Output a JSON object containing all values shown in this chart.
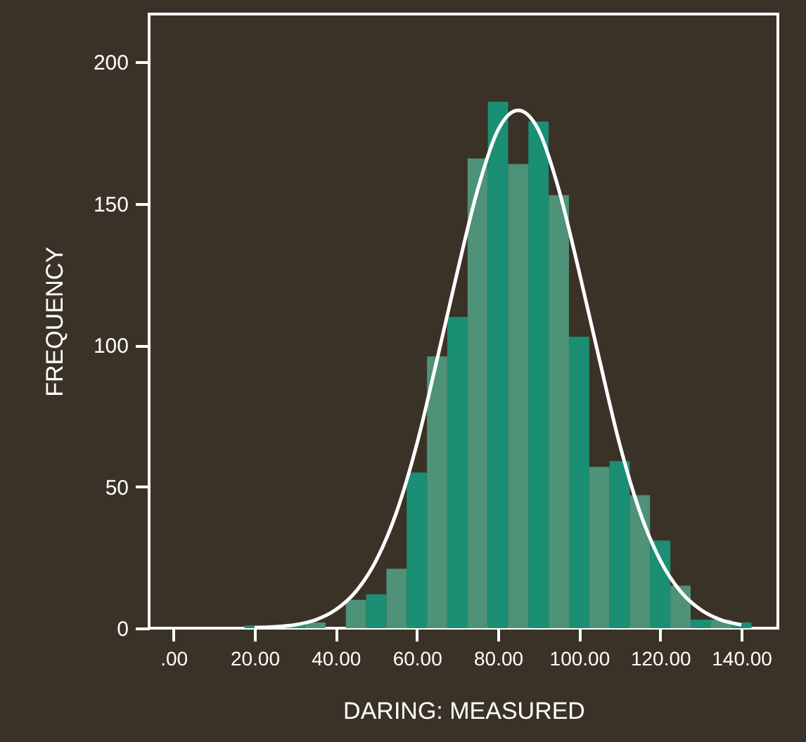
{
  "chart_data": {
    "type": "histogram",
    "xlabel": "DARING: MEASURED",
    "ylabel": "FREQUENCY",
    "bins": [
      17.5,
      22.5,
      27.5,
      32.5,
      37.5,
      42.5,
      47.5,
      52.5,
      57.5,
      62.5,
      67.5,
      72.5,
      77.5,
      82.5,
      87.5,
      92.5,
      97.5,
      102.5,
      107.5,
      112.5,
      117.5,
      122.5,
      127.5,
      132.5,
      137.5,
      142.5
    ],
    "values": [
      1,
      0,
      1,
      2,
      0,
      10,
      12,
      21,
      55,
      96,
      110,
      166,
      186,
      164,
      179,
      153,
      103,
      57,
      59,
      47,
      31,
      15,
      3,
      3,
      2
    ],
    "colors": [
      "#1a8f74",
      "#4e9278",
      "#1a8f74",
      "#4e9278",
      "#1a8f74",
      "#4e9278",
      "#1a8f74",
      "#4e9278",
      "#1a8f74",
      "#4e9278",
      "#1a8f74",
      "#4e9278",
      "#1a8f74",
      "#4e9278",
      "#1a8f74",
      "#4e9278",
      "#1a8f74",
      "#4e9278",
      "#1a8f74",
      "#4e9278",
      "#1a8f74",
      "#4e9278",
      "#1a8f74",
      "#4e9278",
      "#1a8f74"
    ],
    "series": [
      {
        "type": "line",
        "color": "#ffffff",
        "x": [
          20,
          25,
          30,
          35,
          40,
          45,
          50,
          55,
          60,
          65,
          70,
          75,
          80,
          85,
          90,
          95,
          100,
          105,
          110,
          115,
          120,
          125,
          130,
          135,
          140
        ],
        "values": [
          0.2,
          0.5,
          1.2,
          2.9,
          6.5,
          13,
          24,
          41,
          65,
          95,
          126,
          155,
          176,
          183,
          176,
          155,
          126,
          95,
          65,
          41,
          24,
          13,
          6.5,
          2.9,
          1.2
        ]
      }
    ],
    "xlim": [
      -6,
      149
    ],
    "ylim": [
      0,
      217
    ],
    "xticks": [
      {
        "value": 0,
        "label": ".00"
      },
      {
        "value": 20,
        "label": "20.00"
      },
      {
        "value": 40,
        "label": "40.00"
      },
      {
        "value": 60,
        "label": "60.00"
      },
      {
        "value": 80,
        "label": "80.00"
      },
      {
        "value": 100,
        "label": "100.00"
      },
      {
        "value": 120,
        "label": "120.00"
      },
      {
        "value": 140,
        "label": "140.00"
      }
    ],
    "yticks": [
      0,
      50,
      100,
      150,
      200
    ],
    "grid": false
  }
}
